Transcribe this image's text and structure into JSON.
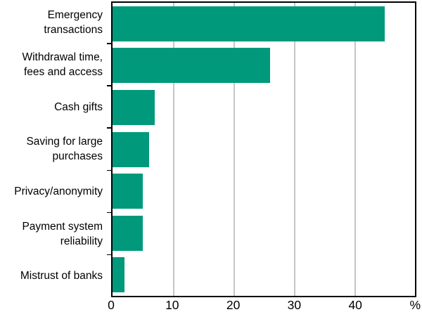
{
  "chart_data": {
    "type": "bar",
    "orientation": "horizontal",
    "title": "",
    "xlabel": "",
    "ylabel": "",
    "categories": [
      "Emergency transactions",
      "Withdrawal time, fees and access",
      "Cash gifts",
      "Saving for large purchases",
      "Privacy/anonymity",
      "Payment system reliability",
      "Mistrust of banks"
    ],
    "categories_display": [
      "Emergency\ntransactions",
      "Withdrawal time,\nfees and access",
      "Cash gifts",
      "Saving for large\npurchases",
      "Privacy/anonymity",
      "Payment system\nreliability",
      "Mistrust of banks"
    ],
    "values": [
      45,
      26,
      7,
      6,
      5,
      5,
      2
    ],
    "xlim": [
      0,
      50
    ],
    "x_ticks": [
      0,
      10,
      20,
      30,
      40
    ],
    "x_tick_labels": [
      "0",
      "10",
      "20",
      "30",
      "40"
    ],
    "unit_label": "%",
    "grid": true,
    "legend_position": "none",
    "colors": {
      "bar": "#00997c",
      "gridline": "#c6c6c6",
      "frame": "#000000",
      "text": "#000000",
      "background": "#ffffff"
    }
  }
}
